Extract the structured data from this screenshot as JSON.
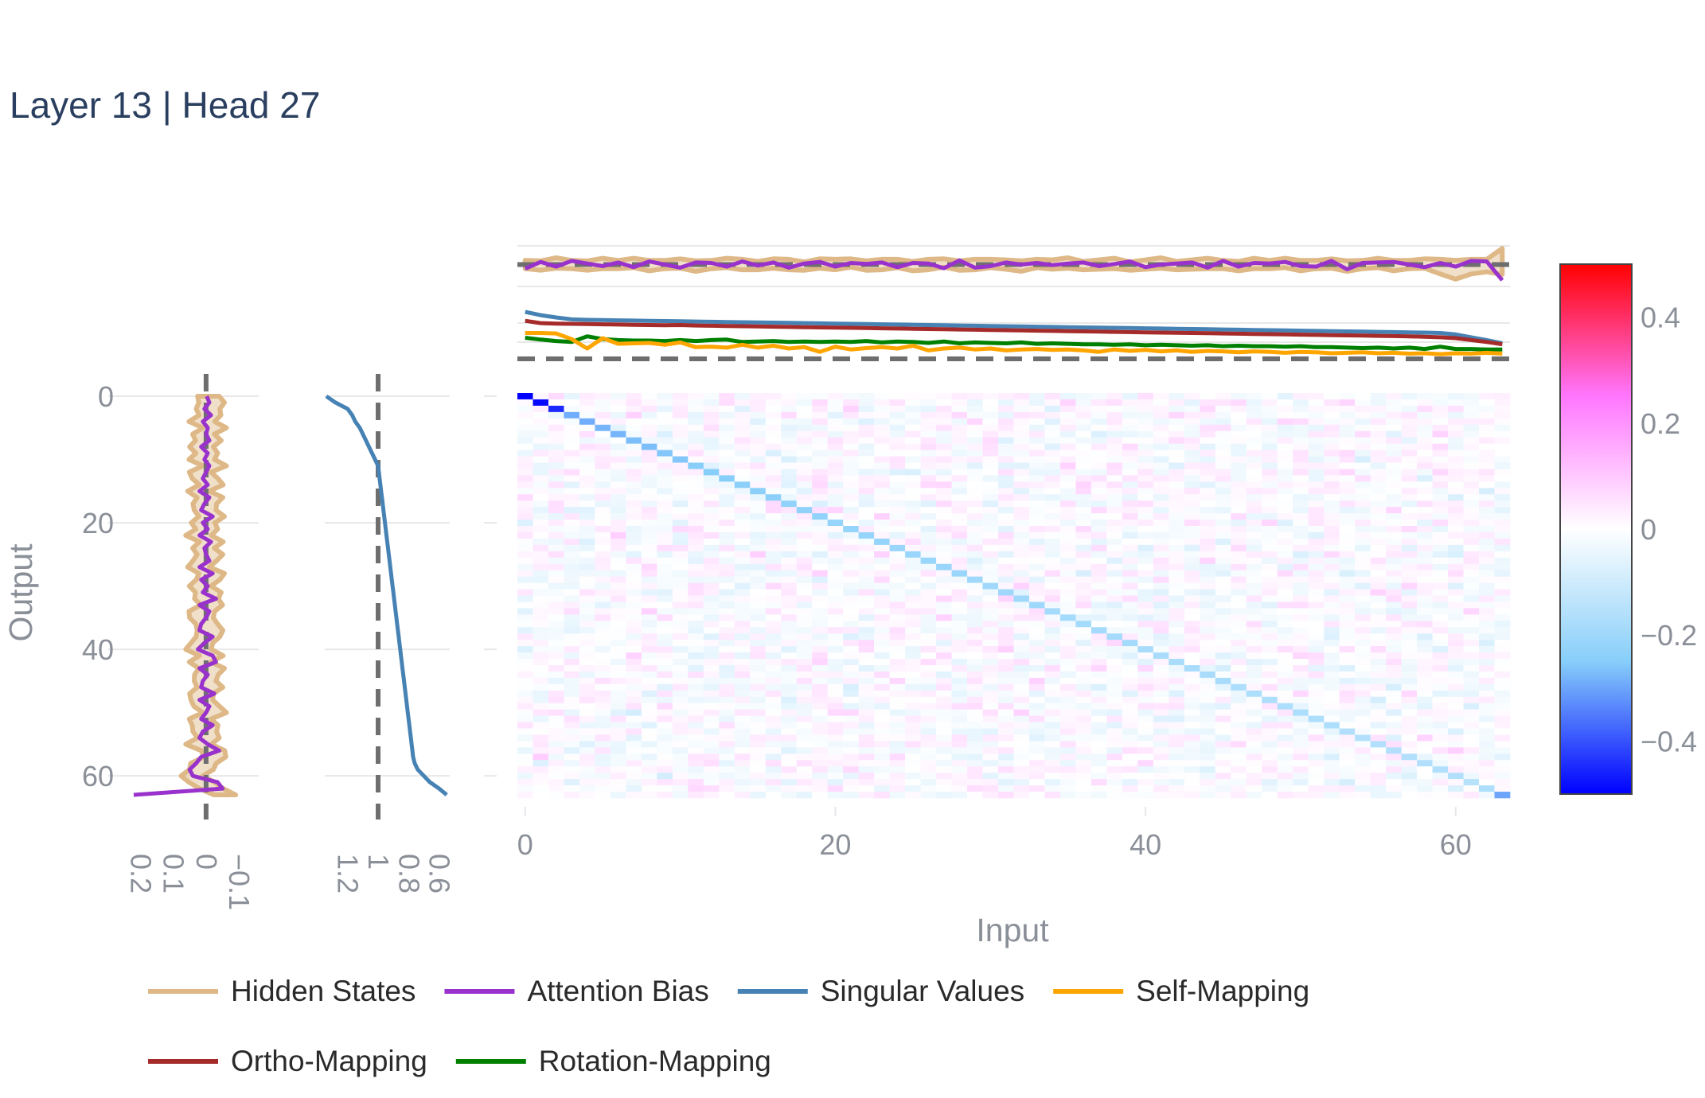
{
  "chart_data": {
    "type": "heatmap",
    "title": "Layer 13 | Head 27",
    "xlabel": "Input",
    "ylabel": "Output",
    "size": 64,
    "xlim": [
      -0.5,
      63.5
    ],
    "ylim": [
      -0.5,
      63.5
    ],
    "x_ticks": [
      0,
      20,
      40,
      60
    ],
    "y_ticks": [
      0,
      20,
      40,
      60
    ],
    "colorbar": {
      "range": [
        -0.5,
        0.5
      ],
      "ticks": [
        0.4,
        0.2,
        0,
        -0.2,
        -0.4
      ],
      "tick_labels": [
        "0.4",
        "0.2",
        "0",
        "−0.2",
        "−0.4"
      ],
      "colors": [
        "#0000ff",
        "#87cefa",
        "#ffffff",
        "#ff77ff",
        "#ff0000"
      ]
    },
    "heatmap": {
      "diagonal_values": [
        -0.5,
        -0.49,
        -0.45,
        -0.29,
        -0.29,
        -0.28,
        -0.28,
        -0.27,
        -0.27,
        -0.26,
        -0.26,
        -0.25,
        -0.25,
        -0.25,
        -0.24,
        -0.24,
        -0.24,
        -0.23,
        -0.23,
        -0.23,
        -0.22,
        -0.22,
        -0.22,
        -0.22,
        -0.21,
        -0.21,
        -0.21,
        -0.21,
        -0.21,
        -0.2,
        -0.2,
        -0.2,
        -0.2,
        -0.2,
        -0.19,
        -0.19,
        -0.19,
        -0.19,
        -0.19,
        -0.19,
        -0.18,
        -0.18,
        -0.18,
        -0.18,
        -0.18,
        -0.18,
        -0.17,
        -0.17,
        -0.17,
        -0.17,
        -0.17,
        -0.17,
        -0.17,
        -0.16,
        -0.16,
        -0.16,
        -0.16,
        -0.16,
        -0.16,
        -0.16,
        -0.16,
        -0.15,
        -0.17,
        -0.3
      ],
      "off_diagonal_range": [
        -0.1,
        0.1
      ]
    },
    "left_panel": {
      "x_ticks": [
        0.2,
        0.1,
        0,
        -0.1
      ],
      "x_tick_labels": [
        "0.2",
        "0.1",
        "0",
        "−0.1"
      ],
      "xlim": [
        0.22,
        -0.16
      ],
      "reference": 0,
      "hidden_band_center": [
        -0.01,
        -0.02,
        0.0,
        -0.015,
        0.01,
        -0.02,
        0.005,
        -0.01,
        0.02,
        -0.005,
        0.01,
        -0.02,
        0.015,
        0.0,
        -0.01,
        0.02,
        -0.015,
        0.01,
        0.0,
        -0.02,
        0.015,
        -0.005,
        0.02,
        -0.01,
        0.005,
        -0.015,
        0.01,
        0.02,
        -0.02,
        0.0,
        0.015,
        -0.01,
        0.005,
        -0.02,
        0.01,
        0.02,
        -0.005,
        -0.015,
        0.0,
        0.01,
        0.02,
        -0.01,
        0.015,
        -0.02,
        0.005,
        0.0,
        -0.015,
        0.02,
        0.01,
        -0.005,
        -0.02,
        0.015,
        0.0,
        0.01,
        -0.01,
        0.02,
        -0.015,
        -0.03,
        0.005,
        0.02,
        0.04,
        0.01,
        -0.01,
        -0.06
      ],
      "hidden_band_halfwidth": 0.03,
      "attention_bias": [
        -0.002,
        -0.01,
        0.005,
        -0.015,
        0.01,
        -0.005,
        0.0,
        -0.01,
        0.015,
        -0.005,
        0.005,
        -0.01,
        0.0,
        0.01,
        -0.005,
        0.02,
        -0.01,
        0.005,
        0.015,
        -0.02,
        0.01,
        -0.005,
        0.02,
        -0.015,
        0.005,
        0.0,
        -0.01,
        0.02,
        -0.02,
        0.015,
        -0.005,
        0.01,
        -0.03,
        0.02,
        -0.01,
        0.0,
        0.015,
        0.02,
        -0.02,
        0.005,
        0.025,
        -0.02,
        -0.03,
        0.02,
        -0.005,
        0.01,
        0.015,
        -0.025,
        0.02,
        -0.01,
        0.0,
        0.015,
        -0.02,
        0.01,
        0.02,
        -0.005,
        -0.04,
        0.015,
        0.03,
        0.05,
        0.04,
        -0.035,
        -0.05,
        0.22
      ]
    },
    "middle_panel": {
      "x_ticks": [
        1.2,
        1,
        0.8,
        0.6
      ],
      "x_tick_labels": [
        "1.2",
        "1",
        "0.8",
        "0.6"
      ],
      "xlim": [
        1.35,
        0.53
      ],
      "reference": 1,
      "singular_values": [
        1.34,
        1.28,
        1.2,
        1.17,
        1.15,
        1.12,
        1.1,
        1.08,
        1.06,
        1.04,
        1.02,
        1.0,
        0.995,
        0.99,
        0.985,
        0.98,
        0.975,
        0.97,
        0.965,
        0.96,
        0.955,
        0.95,
        0.945,
        0.94,
        0.935,
        0.93,
        0.925,
        0.92,
        0.915,
        0.91,
        0.905,
        0.9,
        0.895,
        0.89,
        0.885,
        0.88,
        0.875,
        0.87,
        0.865,
        0.86,
        0.855,
        0.85,
        0.845,
        0.84,
        0.835,
        0.83,
        0.825,
        0.82,
        0.815,
        0.81,
        0.805,
        0.8,
        0.795,
        0.79,
        0.785,
        0.78,
        0.775,
        0.77,
        0.76,
        0.74,
        0.7,
        0.66,
        0.6,
        0.55
      ]
    },
    "top_panel_hidden": {
      "reference": 0,
      "ylim": [
        -0.045,
        0.045
      ],
      "hidden_band_center": [
        0.0,
        -0.002,
        0.003,
        0.0,
        -0.002,
        0.002,
        0.0,
        0.003,
        -0.002,
        0.0,
        0.002,
        -0.003,
        0.0,
        0.003,
        0.0,
        -0.002,
        0.002,
        0.0,
        -0.003,
        0.002,
        0.0,
        0.003,
        -0.002,
        0.0,
        0.002,
        -0.003,
        0.0,
        0.003,
        -0.002,
        0.0,
        0.002,
        0.0,
        -0.003,
        0.002,
        0.0,
        0.003,
        -0.002,
        0.0,
        0.002,
        -0.003,
        0.0,
        0.003,
        -0.002,
        0.0,
        0.002,
        0.0,
        -0.003,
        0.002,
        0.0,
        0.003,
        -0.002,
        0.0,
        0.002,
        -0.003,
        0.0,
        0.003,
        -0.002,
        0.0,
        0.002,
        -0.004,
        -0.01,
        -0.004,
        -0.002,
        0.006
      ],
      "hidden_band_halfwidth": [
        0.008,
        0.009,
        0.01,
        0.008,
        0.009,
        0.01,
        0.008,
        0.009,
        0.01,
        0.008,
        0.009,
        0.01,
        0.008,
        0.009,
        0.01,
        0.008,
        0.009,
        0.01,
        0.008,
        0.009,
        0.01,
        0.008,
        0.009,
        0.01,
        0.008,
        0.009,
        0.01,
        0.008,
        0.009,
        0.01,
        0.008,
        0.009,
        0.01,
        0.008,
        0.009,
        0.01,
        0.008,
        0.009,
        0.01,
        0.008,
        0.009,
        0.01,
        0.008,
        0.009,
        0.01,
        0.008,
        0.009,
        0.01,
        0.008,
        0.009,
        0.01,
        0.008,
        0.009,
        0.01,
        0.008,
        0.009,
        0.01,
        0.008,
        0.009,
        0.014,
        0.018,
        0.014,
        0.012,
        0.025
      ],
      "attention_bias": [
        -0.008,
        0.005,
        -0.004,
        0.007,
        0.002,
        -0.003,
        0.004,
        -0.005,
        0.006,
        0.0,
        -0.006,
        0.004,
        0.003,
        -0.004,
        0.006,
        -0.002,
        0.004,
        -0.006,
        0.002,
        0.005,
        -0.004,
        0.003,
        0.001,
        0.004,
        -0.005,
        0.003,
        0.002,
        -0.007,
        0.008,
        -0.006,
        -0.003,
        0.004,
        0.0,
        0.003,
        -0.001,
        0.002,
        0.004,
        -0.003,
        0.001,
        0.006,
        -0.005,
        0.0,
        0.002,
        0.004,
        -0.006,
        0.007,
        -0.004,
        0.003,
        0.002,
        0.005,
        -0.003,
        -0.004,
        0.007,
        -0.009,
        0.003,
        0.004,
        0.005,
        0.0,
        -0.005,
        0.003,
        -0.004,
        0.007,
        0.006,
        -0.03
      ]
    },
    "top_panel_mappings": {
      "reference": 0,
      "ylim": [
        -0.05,
        1.05
      ],
      "series": [
        {
          "name": "Singular Values",
          "color": "#4682b4",
          "values": [
            1.0,
            0.93,
            0.88,
            0.84,
            0.83,
            0.825,
            0.82,
            0.815,
            0.81,
            0.805,
            0.8,
            0.795,
            0.79,
            0.785,
            0.78,
            0.775,
            0.77,
            0.765,
            0.76,
            0.755,
            0.75,
            0.745,
            0.74,
            0.735,
            0.73,
            0.725,
            0.72,
            0.715,
            0.71,
            0.705,
            0.7,
            0.695,
            0.69,
            0.685,
            0.68,
            0.675,
            0.67,
            0.665,
            0.66,
            0.655,
            0.65,
            0.645,
            0.64,
            0.635,
            0.63,
            0.625,
            0.62,
            0.615,
            0.61,
            0.605,
            0.6,
            0.595,
            0.59,
            0.585,
            0.58,
            0.575,
            0.57,
            0.565,
            0.56,
            0.55,
            0.52,
            0.46,
            0.4,
            0.33
          ]
        },
        {
          "name": "Ortho-Mapping",
          "color": "#a52a2a",
          "values": [
            0.81,
            0.76,
            0.75,
            0.745,
            0.74,
            0.735,
            0.73,
            0.725,
            0.72,
            0.715,
            0.72,
            0.71,
            0.705,
            0.7,
            0.695,
            0.69,
            0.685,
            0.68,
            0.675,
            0.67,
            0.665,
            0.66,
            0.655,
            0.65,
            0.645,
            0.64,
            0.635,
            0.63,
            0.625,
            0.62,
            0.615,
            0.61,
            0.605,
            0.6,
            0.595,
            0.59,
            0.585,
            0.58,
            0.575,
            0.57,
            0.565,
            0.56,
            0.555,
            0.55,
            0.545,
            0.54,
            0.535,
            0.53,
            0.525,
            0.52,
            0.515,
            0.51,
            0.505,
            0.5,
            0.495,
            0.49,
            0.485,
            0.48,
            0.47,
            0.46,
            0.44,
            0.4,
            0.36,
            0.31
          ]
        },
        {
          "name": "Rotation-Mapping",
          "color": "#008000",
          "values": [
            0.45,
            0.41,
            0.38,
            0.36,
            0.48,
            0.42,
            0.4,
            0.39,
            0.39,
            0.38,
            0.4,
            0.38,
            0.4,
            0.41,
            0.36,
            0.37,
            0.38,
            0.36,
            0.37,
            0.36,
            0.37,
            0.36,
            0.38,
            0.35,
            0.37,
            0.36,
            0.34,
            0.37,
            0.33,
            0.35,
            0.34,
            0.33,
            0.35,
            0.32,
            0.33,
            0.32,
            0.31,
            0.31,
            0.3,
            0.31,
            0.29,
            0.3,
            0.29,
            0.28,
            0.29,
            0.27,
            0.28,
            0.27,
            0.27,
            0.26,
            0.27,
            0.25,
            0.25,
            0.24,
            0.23,
            0.24,
            0.22,
            0.24,
            0.21,
            0.26,
            0.21,
            0.21,
            0.2,
            0.2
          ]
        },
        {
          "name": "Self-Mapping",
          "color": "#ffa500",
          "values": [
            0.55,
            0.55,
            0.54,
            0.42,
            0.22,
            0.44,
            0.32,
            0.33,
            0.34,
            0.3,
            0.35,
            0.25,
            0.26,
            0.24,
            0.3,
            0.24,
            0.28,
            0.22,
            0.25,
            0.15,
            0.26,
            0.2,
            0.23,
            0.25,
            0.22,
            0.28,
            0.18,
            0.22,
            0.24,
            0.2,
            0.22,
            0.18,
            0.2,
            0.21,
            0.19,
            0.2,
            0.18,
            0.15,
            0.2,
            0.17,
            0.19,
            0.16,
            0.18,
            0.15,
            0.17,
            0.16,
            0.14,
            0.16,
            0.15,
            0.13,
            0.15,
            0.14,
            0.12,
            0.13,
            0.14,
            0.12,
            0.13,
            0.11,
            0.12,
            0.1,
            0.12,
            0.11,
            0.13,
            0.11
          ]
        }
      ]
    },
    "legend": {
      "placement": "bottom",
      "items": [
        {
          "name": "Hidden States",
          "color": "#deb887"
        },
        {
          "name": "Attention Bias",
          "color": "#9932cc"
        },
        {
          "name": "Singular Values",
          "color": "#4682b4"
        },
        {
          "name": "Self-Mapping",
          "color": "#ffa500"
        },
        {
          "name": "Ortho-Mapping",
          "color": "#a52a2a"
        },
        {
          "name": "Rotation-Mapping",
          "color": "#008000"
        }
      ]
    }
  }
}
